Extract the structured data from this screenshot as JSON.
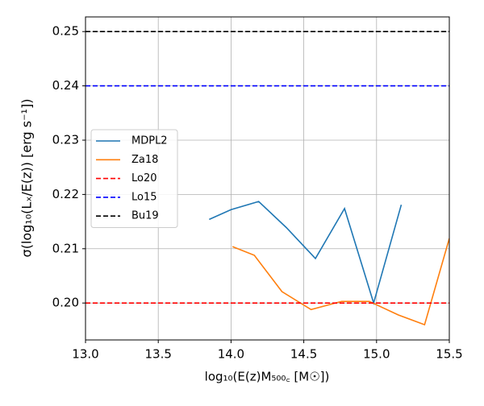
{
  "chart_data": {
    "type": "line",
    "xlabel": "log₁₀(E(z)M₅₀₀꜀ [M☉])",
    "ylabel": "σ(log₁₀(Lₓ/E(z)) [erg s⁻¹])",
    "xlim": [
      13.0,
      15.5
    ],
    "ylim": [
      0.1932,
      0.2527
    ],
    "xticks": [
      {
        "value": 13.0,
        "label": "13.0"
      },
      13.5,
      {
        "value": 14.0,
        "label": "14.0"
      },
      14.5,
      {
        "value": 15.0,
        "label": "15.0"
      },
      15.5
    ],
    "yticks": [
      {
        "value": 0.2,
        "label": "0.20"
      },
      0.21,
      0.22,
      0.23,
      0.24,
      0.25
    ],
    "grid": true,
    "legend": "center left",
    "series": [
      {
        "name": "MDPL2",
        "color": "#1f77b4",
        "dash": false,
        "x": [
          13.85,
          14.0,
          14.19,
          14.38,
          14.58,
          14.78,
          14.98,
          15.17
        ],
        "values": [
          0.2154,
          0.2172,
          0.2187,
          0.2139,
          0.2082,
          0.2174,
          0.2,
          0.2181
        ]
      },
      {
        "name": "Za18",
        "color": "#ff7f0e",
        "dash": false,
        "x": [
          14.01,
          14.16,
          14.35,
          14.55,
          14.76,
          14.95,
          15.15,
          15.33,
          15.5
        ],
        "values": [
          0.2104,
          0.2088,
          0.2021,
          0.1988,
          0.2003,
          0.2003,
          0.1978,
          0.196,
          0.2119
        ]
      },
      {
        "name": "Lo20",
        "color": "#ff0000",
        "dash": true,
        "x": [
          13.0,
          15.5
        ],
        "values": [
          0.2,
          0.2
        ]
      },
      {
        "name": "Lo15",
        "color": "#0000ff",
        "dash": true,
        "x": [
          13.0,
          15.5
        ],
        "values": [
          0.24,
          0.24
        ]
      },
      {
        "name": "Bu19",
        "color": "#000000",
        "dash": true,
        "x": [
          13.0,
          15.5
        ],
        "values": [
          0.25,
          0.25
        ]
      }
    ]
  }
}
